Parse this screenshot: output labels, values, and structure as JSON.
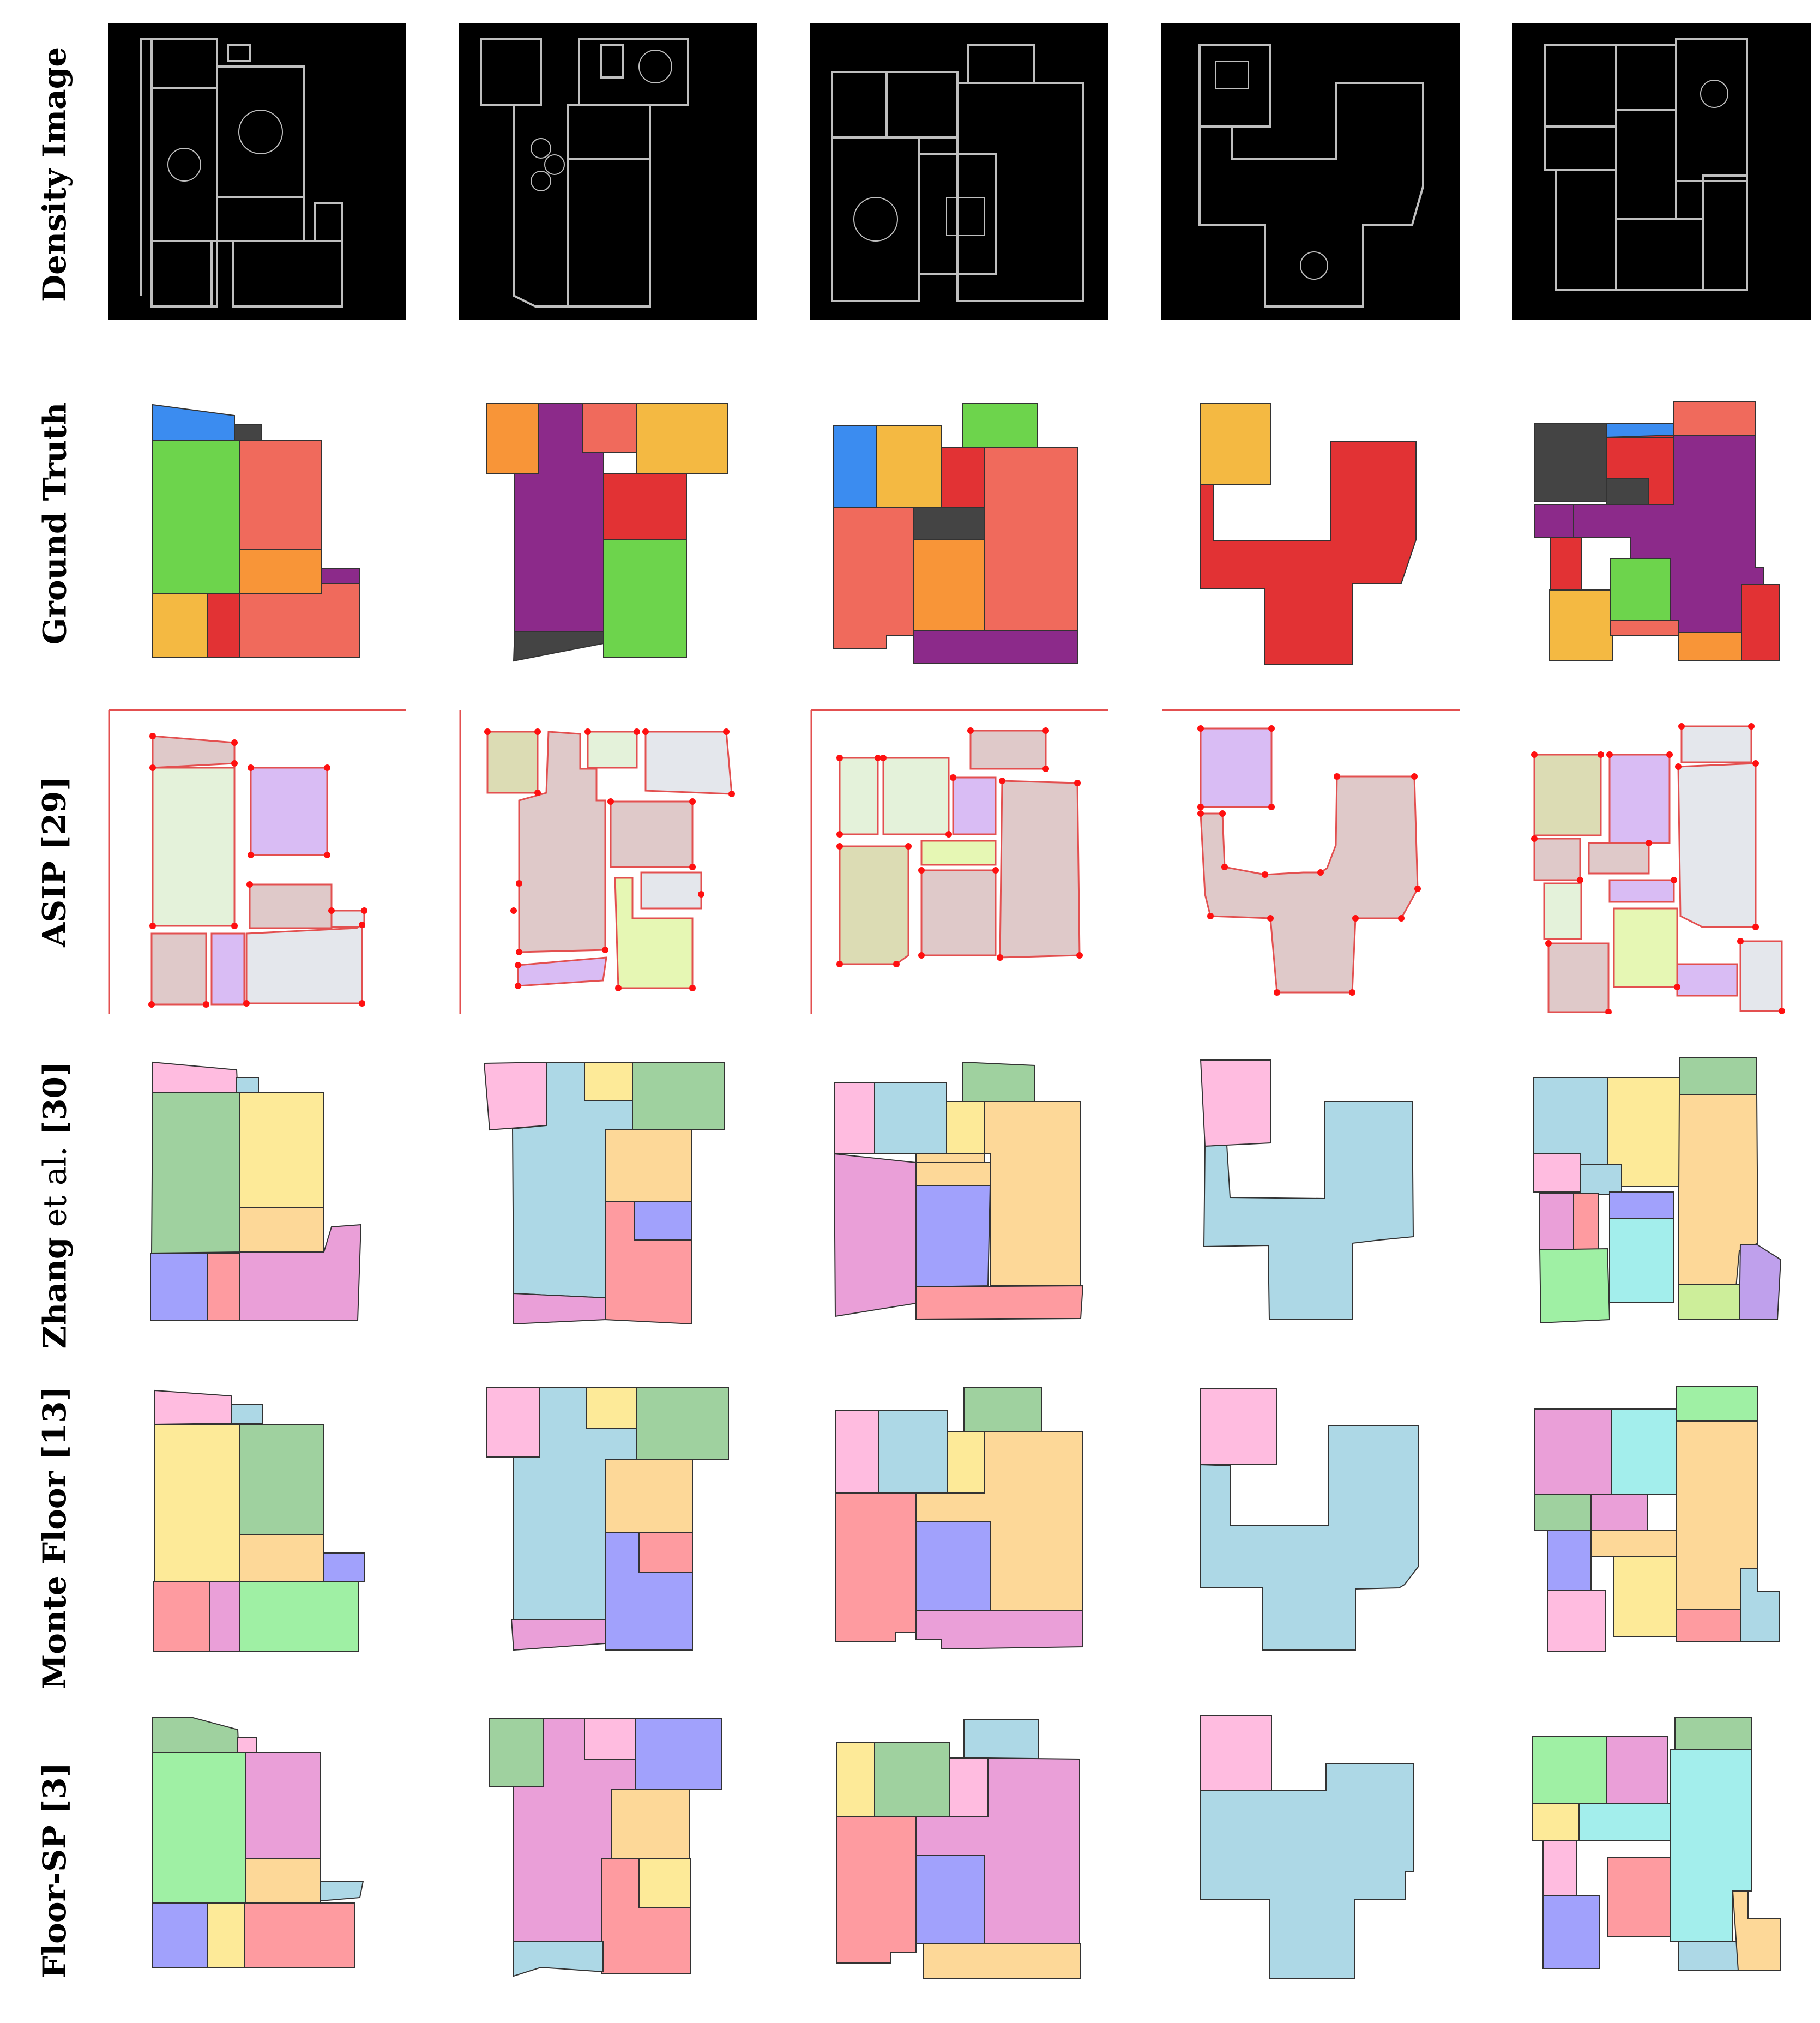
{
  "rows": [
    {
      "label": "Density Image"
    },
    {
      "label": "Ground Truth"
    },
    {
      "label": "ASIP [29]"
    },
    {
      "label_bold_a": "Zhang",
      "label_thin": " et al.",
      "label_bold_b": " [30]"
    },
    {
      "label": "Monte Floor [13]"
    },
    {
      "label": "Floor-SP [3]"
    }
  ],
  "colors": {
    "gt": [
      "#f06a5c",
      "#e23234",
      "#6dd44c",
      "#f4b942",
      "#f89538",
      "#8c2a8a",
      "#3b8cf0",
      "#444444"
    ],
    "asip": [
      "#dfc9c9",
      "#e4f2da",
      "#d9bcf4",
      "#e4e7ec",
      "#dcdcb4",
      "#e6f7b4"
    ],
    "method": [
      "#ffbce0",
      "#add8e6",
      "#9fd19f",
      "#fdea98",
      "#fdd898",
      "#a1a1fc",
      "#fe9ba0",
      "#ea9fd8",
      "#9ff0a4",
      "#a3eeec"
    ]
  }
}
